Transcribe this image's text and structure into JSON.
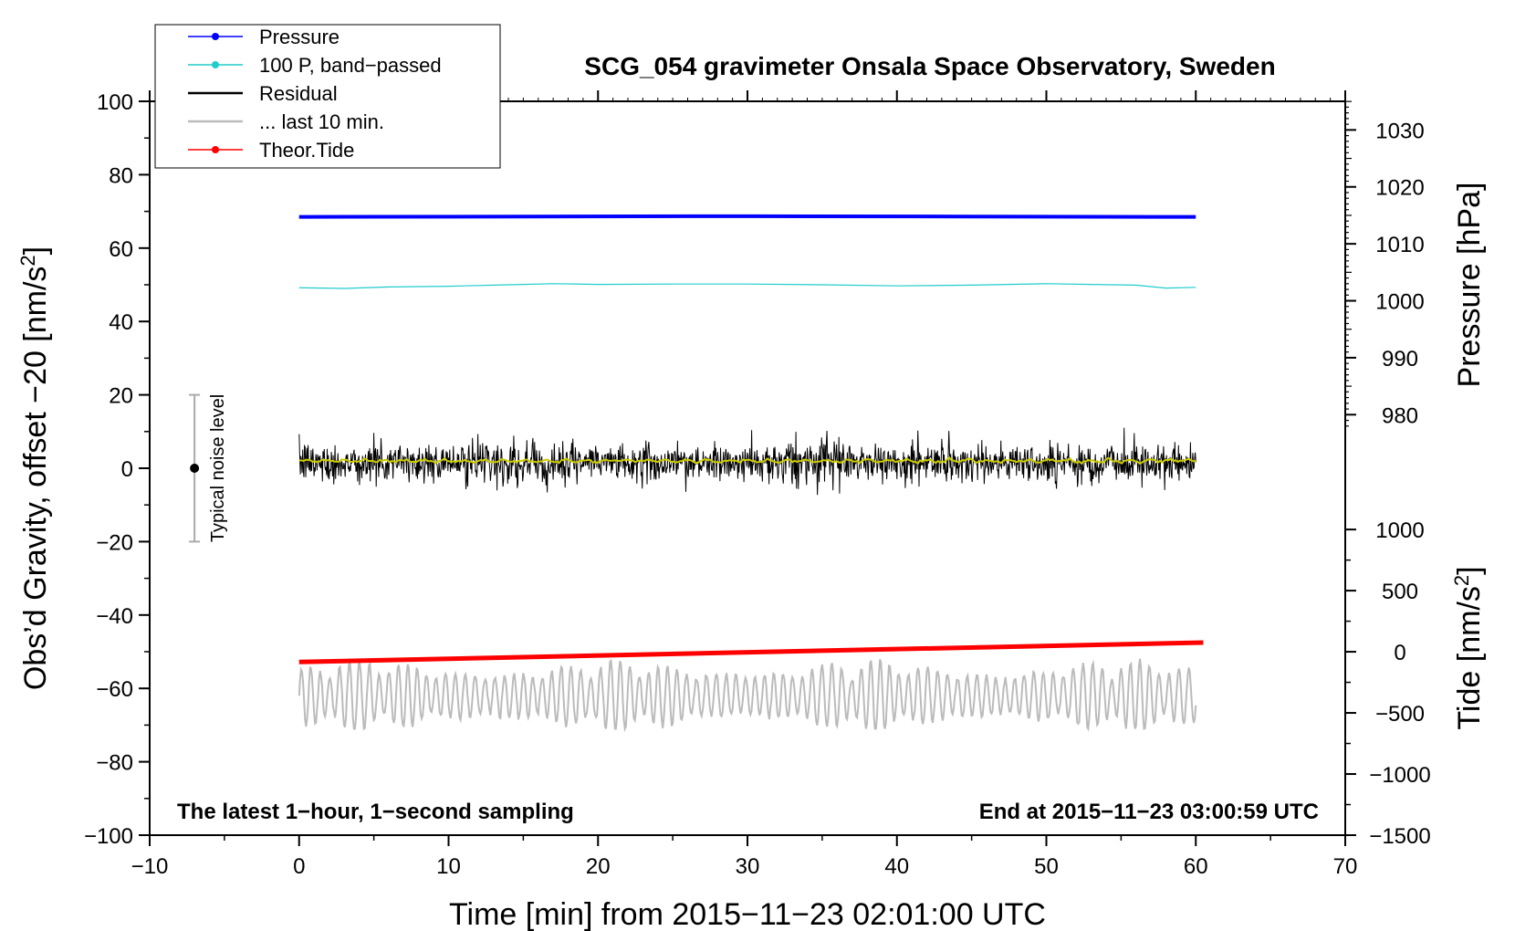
{
  "chart_data": {
    "type": "line",
    "title": "SCG_054 gravimeter Onsala Space Observatory, Sweden",
    "xlabel": "Time [min] from 2015−11−23 02:01:00 UTC",
    "ylabel_left": "Obs’d Gravity, offset −20 [nm/s",
    "ylabel_left_sup": "2",
    "ylabel_left_end": "]",
    "ylabel_right_top": "Pressure [hPa]",
    "ylabel_right_bottom": "Tide [nm/s",
    "ylabel_right_bottom_sup": "2",
    "ylabel_right_bottom_end": "]",
    "xlim": [
      -10,
      70
    ],
    "ylim": [
      -100,
      100
    ],
    "xticks": [
      -10,
      0,
      10,
      20,
      30,
      40,
      50,
      60,
      70
    ],
    "xtick_labels": [
      "−10",
      "0",
      "10",
      "20",
      "30",
      "40",
      "50",
      "60",
      "70"
    ],
    "yticks": [
      -100,
      -80,
      -60,
      -40,
      -20,
      0,
      20,
      40,
      60,
      80,
      100
    ],
    "ytick_labels": [
      "−100",
      "−80",
      "−60",
      "−40",
      "−20",
      "0",
      "20",
      "40",
      "60",
      "80",
      "100"
    ],
    "pressure_axis": {
      "ticks": [
        980,
        990,
        1000,
        1010,
        1020,
        1030
      ],
      "labels": [
        "980",
        "990",
        "1000",
        "1010",
        "1020",
        "1030"
      ],
      "map": {
        "value_a": 980,
        "gravity_a": 14.6,
        "value_b": 1030,
        "gravity_b": 92.2
      }
    },
    "tide_axis": {
      "ticks": [
        -1500,
        -1000,
        -500,
        0,
        500,
        1000
      ],
      "labels": [
        "−1500",
        "−1000",
        "−500",
        "0",
        "500",
        "1000"
      ],
      "map": {
        "value_a": -1500,
        "gravity_a": -100,
        "value_b": 1000,
        "gravity_b": -16.7
      }
    },
    "series": [
      {
        "name": "Pressure",
        "color": "#0000ff",
        "x": [
          0,
          15,
          30,
          45,
          60
        ],
        "y": [
          68.5,
          68.6,
          68.7,
          68.6,
          68.5
        ]
      },
      {
        "name": "100 P, band−passed",
        "color": "#22cccc",
        "x": [
          0,
          3,
          6,
          10,
          14,
          17,
          20,
          25,
          30,
          35,
          40,
          45,
          50,
          53,
          56,
          58,
          60
        ],
        "y": [
          49.2,
          49.0,
          49.4,
          49.6,
          50.0,
          50.3,
          50.1,
          50.2,
          50.2,
          50.0,
          49.7,
          49.9,
          50.3,
          50.1,
          49.9,
          49.1,
          49.3
        ]
      },
      {
        "name": "Residual",
        "color": "#000000",
        "x_range": [
          0,
          60
        ],
        "center": 1.5,
        "typical_range": [
          -7,
          10
        ],
        "peak_max": 16,
        "peak_min": -8.5
      },
      {
        "name": "Residual running mean",
        "color": "#cccc00",
        "center": 2.0
      },
      {
        "name": "... last 10 min.",
        "color": "#bbbbbb",
        "x_range": [
          0,
          60
        ],
        "center": -62,
        "range": [
          -71,
          -51
        ]
      },
      {
        "name": "Theor.Tide",
        "color": "#ff0000",
        "x": [
          0,
          60.5
        ],
        "y": [
          -52.8,
          -47.5
        ]
      }
    ],
    "legend": [
      {
        "label": "Pressure",
        "color": "#0000ff",
        "marker": true
      },
      {
        "label": "100 P, band−passed",
        "color": "#22cccc",
        "marker": true
      },
      {
        "label": "Residual",
        "color": "#000000",
        "marker": false
      },
      {
        "label": "... last 10 min.",
        "color": "#bbbbbb",
        "marker": false
      },
      {
        "label": "Theor.Tide",
        "color": "#ff0000",
        "marker": true
      }
    ],
    "legend_position": "top-left",
    "noise_marker": {
      "label": "Typical noise level",
      "x": -7,
      "y": 0,
      "range": [
        -20,
        20
      ]
    },
    "annotation_left": "The latest 1−hour, 1−second sampling",
    "annotation_right": "End at 2015−11−23 03:00:59 UTC"
  }
}
